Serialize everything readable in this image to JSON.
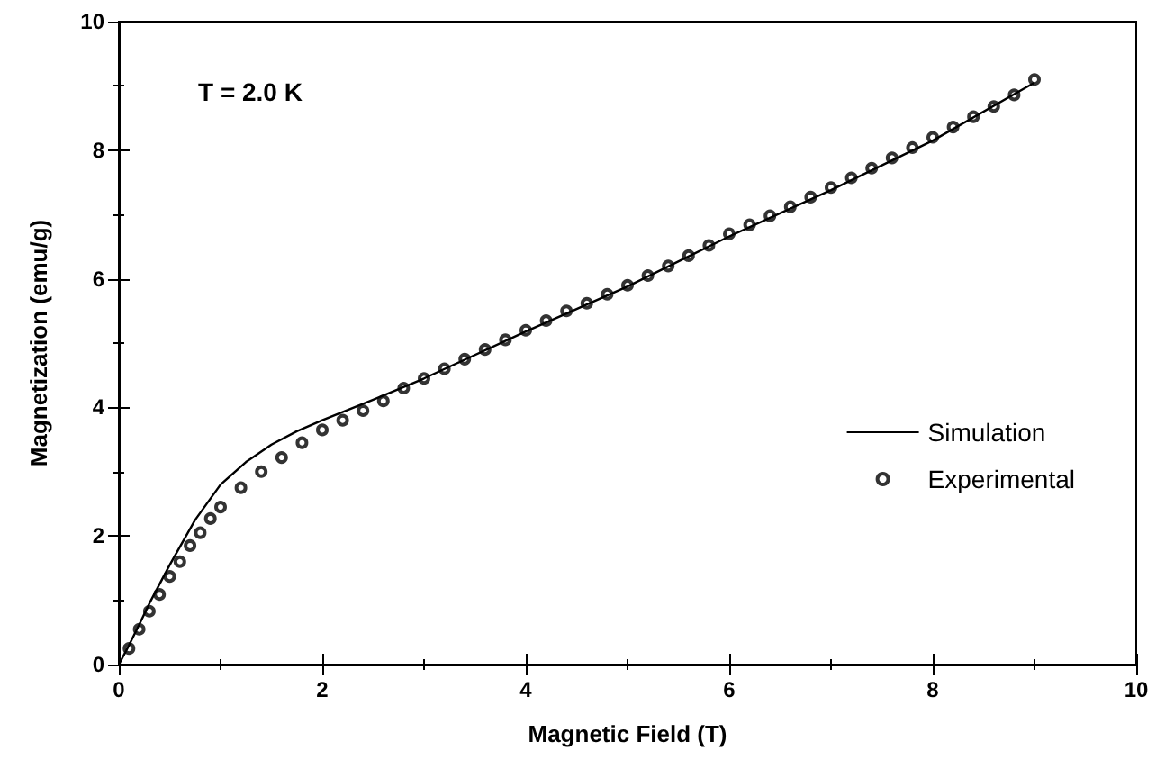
{
  "chart_data": {
    "type": "scatter",
    "xlabel": "Magnetic Field (T)",
    "ylabel": "Magnetization (emu/g)",
    "annotations": [
      "T = 2.0 K"
    ],
    "xlim": [
      0,
      10
    ],
    "xticks": [
      0,
      2,
      4,
      6,
      8,
      10
    ],
    "ylim": [
      0,
      10
    ],
    "yticks": [
      0,
      2,
      4,
      6,
      8,
      10
    ],
    "grid": false,
    "legend": "right",
    "series": [
      {
        "name": "Simulation",
        "type": "line",
        "color": "#000000",
        "marker": "none",
        "line_style": "solid",
        "x": [
          0,
          0.1,
          0.2,
          0.3,
          0.5,
          0.75,
          1,
          1.25,
          1.5,
          1.75,
          2,
          2.5,
          3,
          4,
          5,
          6,
          7,
          8,
          9
        ],
        "values": [
          0,
          0.3,
          0.62,
          0.95,
          1.55,
          2.25,
          2.8,
          3.15,
          3.42,
          3.63,
          3.8,
          4.12,
          4.45,
          5.18,
          5.88,
          6.66,
          7.38,
          8.15,
          9.05
        ]
      },
      {
        "name": "Experimental",
        "color": "#000000",
        "marker": "circle",
        "x": [
          0.1,
          0.2,
          0.3,
          0.4,
          0.5,
          0.6,
          0.7,
          0.8,
          0.9,
          1.0,
          1.2,
          1.4,
          1.6,
          1.8,
          2.0,
          2.2,
          2.4,
          2.6,
          2.8,
          3.0,
          3.2,
          3.4,
          3.6,
          3.8,
          4.0,
          4.2,
          4.4,
          4.6,
          4.8,
          5.0,
          5.2,
          5.4,
          5.6,
          5.8,
          6.0,
          6.2,
          6.4,
          6.6,
          6.8,
          7.0,
          7.2,
          7.4,
          7.6,
          7.8,
          8.0,
          8.2,
          8.4,
          8.6,
          8.8,
          9.0
        ],
        "values": [
          0.25,
          0.55,
          0.83,
          1.09,
          1.37,
          1.6,
          1.85,
          2.05,
          2.27,
          2.45,
          2.75,
          3.0,
          3.22,
          3.45,
          3.65,
          3.8,
          3.95,
          4.1,
          4.3,
          4.45,
          4.6,
          4.75,
          4.9,
          5.05,
          5.2,
          5.35,
          5.5,
          5.62,
          5.76,
          5.9,
          6.05,
          6.2,
          6.36,
          6.52,
          6.7,
          6.84,
          6.98,
          7.12,
          7.27,
          7.42,
          7.57,
          7.72,
          7.88,
          8.04,
          8.2,
          8.36,
          8.52,
          8.68,
          8.86,
          9.1
        ]
      }
    ]
  }
}
